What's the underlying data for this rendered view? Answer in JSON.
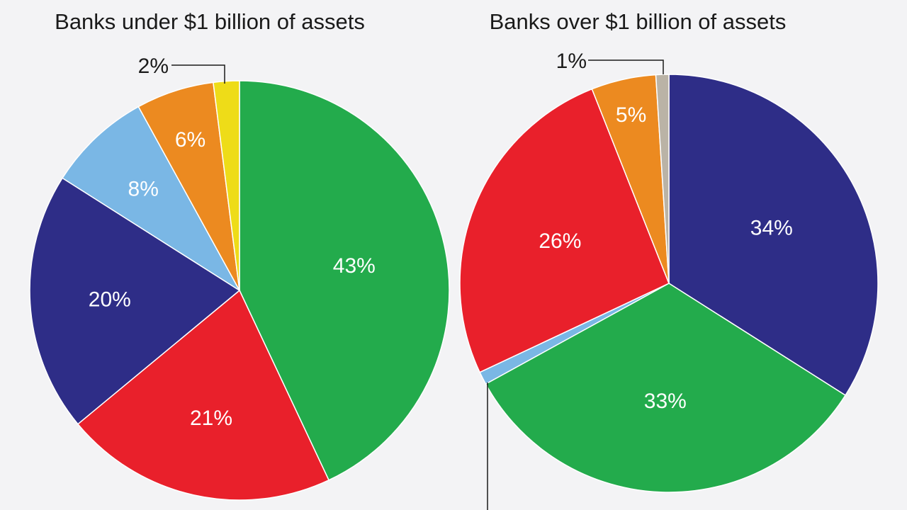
{
  "chart_data": [
    {
      "type": "pie",
      "title": "Banks under $1 billion of assets",
      "slices": [
        {
          "label": "43%",
          "value": 43,
          "color": "#23ab4c"
        },
        {
          "label": "21%",
          "value": 21,
          "color": "#e9202b"
        },
        {
          "label": "20%",
          "value": 20,
          "color": "#2e2d87"
        },
        {
          "label": "8%",
          "value": 8,
          "color": "#7ab7e5"
        },
        {
          "label": "6%",
          "value": 6,
          "color": "#ec8a20"
        },
        {
          "label": "2%",
          "value": 2,
          "color": "#eedc18"
        }
      ]
    },
    {
      "type": "pie",
      "title": "Banks over $1 billion of assets",
      "slices": [
        {
          "label": "34%",
          "value": 34,
          "color": "#2e2d87"
        },
        {
          "label": "33%",
          "value": 33,
          "color": "#23ab4c"
        },
        {
          "label": "",
          "value": 1,
          "color": "#7ab7e5"
        },
        {
          "label": "26%",
          "value": 26,
          "color": "#e9202b"
        },
        {
          "label": "5%",
          "value": 5,
          "color": "#ec8a20"
        },
        {
          "label": "1%",
          "value": 1,
          "color": "#bab3a6"
        }
      ]
    }
  ]
}
